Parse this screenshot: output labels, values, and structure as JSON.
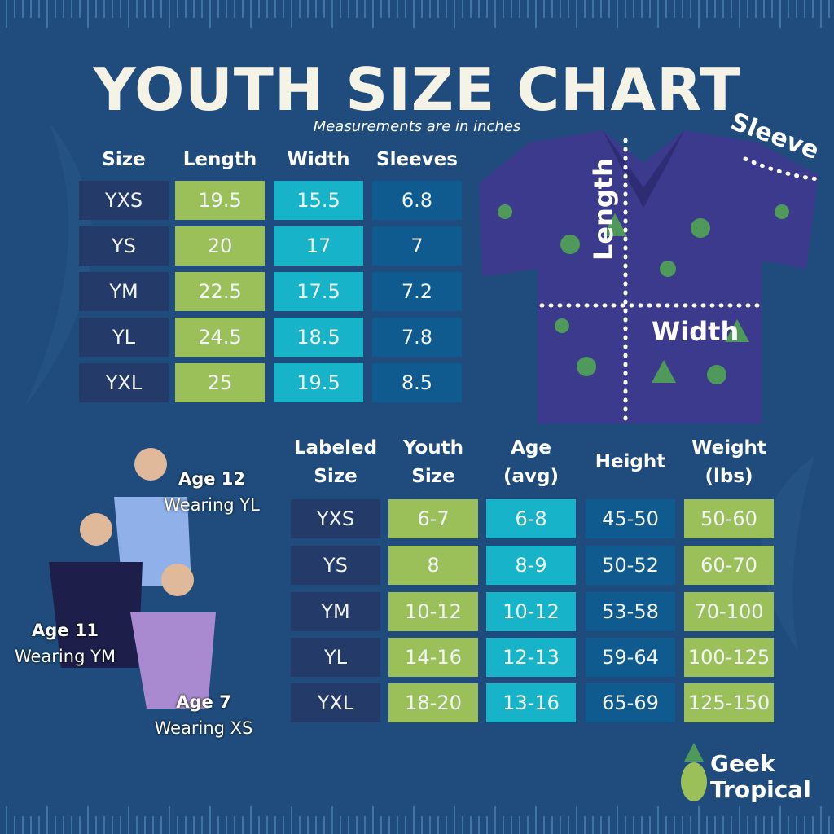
{
  "header": {
    "title": "YOUTH SIZE CHART",
    "subtitle": "Measurements are in inches"
  },
  "measurements": {
    "columns": [
      "Size",
      "Length",
      "Width",
      "Sleeves"
    ],
    "rows": [
      [
        "YXS",
        19.5,
        15.5,
        6.8
      ],
      [
        "YS",
        20,
        17,
        7
      ],
      [
        "YM",
        22.5,
        17.5,
        7.2
      ],
      [
        "YL",
        24.5,
        18.5,
        7.8
      ],
      [
        "YXL",
        25,
        19.5,
        8.5
      ]
    ]
  },
  "diagram": {
    "length": "Length",
    "width": "Width",
    "sleeve": "Sleeve"
  },
  "sizes": {
    "columns": [
      "Labeled Size",
      "Youth Size",
      "Age (avg)",
      "Height",
      "Weight (lbs)"
    ],
    "rows": [
      [
        "YXS",
        "6-7",
        "6-8",
        "45-50",
        "50-60"
      ],
      [
        "YS",
        "8",
        "8-9",
        "50-52",
        "60-70"
      ],
      [
        "YM",
        "10-12",
        "10-12",
        "53-58",
        "70-100"
      ],
      [
        "YL",
        "14-16",
        "12-13",
        "59-64",
        "100-125"
      ],
      [
        "YXL",
        "18-20",
        "13-16",
        "65-69",
        "125-150"
      ]
    ]
  },
  "models": [
    {
      "age": "Age 12",
      "wearing": "Wearing YL"
    },
    {
      "age": "Age 11",
      "wearing": "Wearing YM"
    },
    {
      "age": "Age 7",
      "wearing": "Wearing XS"
    }
  ],
  "brand": {
    "line1": "Geek",
    "line2": "Tropical"
  }
}
